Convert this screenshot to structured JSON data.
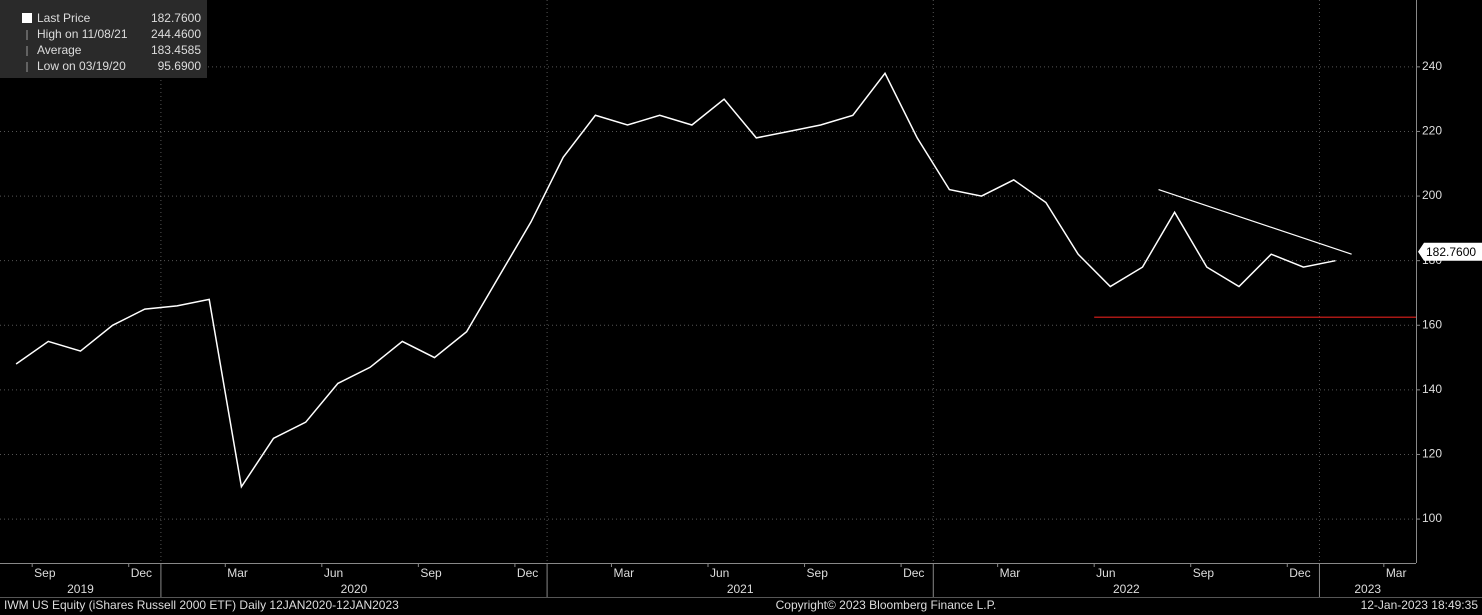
{
  "chart_data": {
    "type": "line",
    "series": [
      {
        "name": "Last Price",
        "color": "#ffffff",
        "values": [
          148,
          155,
          152,
          160,
          165,
          166,
          168,
          110,
          125,
          130,
          142,
          147,
          155,
          150,
          158,
          175,
          192,
          212,
          225,
          222,
          225,
          222,
          230,
          218,
          220,
          222,
          225,
          238,
          218,
          202,
          200,
          205,
          198,
          182,
          172,
          178,
          195,
          178,
          172,
          182,
          178,
          180
        ]
      }
    ],
    "x": [
      "2019-08",
      "2019-09",
      "2019-10",
      "2019-11",
      "2019-12",
      "2020-01",
      "2020-02",
      "2020-03",
      "2020-04",
      "2020-05",
      "2020-06",
      "2020-07",
      "2020-08",
      "2020-09",
      "2020-10",
      "2020-11",
      "2020-12",
      "2021-01",
      "2021-02",
      "2021-03",
      "2021-04",
      "2021-05",
      "2021-06",
      "2021-07",
      "2021-08",
      "2021-09",
      "2021-10",
      "2021-11",
      "2021-12",
      "2022-01",
      "2022-02",
      "2022-03",
      "2022-04",
      "2022-05",
      "2022-06",
      "2022-07",
      "2022-08",
      "2022-09",
      "2022-10",
      "2022-11",
      "2022-12",
      "2023-01"
    ],
    "xlim": [
      "2019-08",
      "2023-04"
    ],
    "xticks": [
      {
        "value": "2019-09",
        "label": "Sep"
      },
      {
        "value": "2019-12",
        "label": "Dec"
      },
      {
        "value": "2020-03",
        "label": "Mar"
      },
      {
        "value": "2020-06",
        "label": "Jun"
      },
      {
        "value": "2020-09",
        "label": "Sep"
      },
      {
        "value": "2020-12",
        "label": "Dec"
      },
      {
        "value": "2021-03",
        "label": "Mar"
      },
      {
        "value": "2021-06",
        "label": "Jun"
      },
      {
        "value": "2021-09",
        "label": "Sep"
      },
      {
        "value": "2021-12",
        "label": "Dec"
      },
      {
        "value": "2022-03",
        "label": "Mar"
      },
      {
        "value": "2022-06",
        "label": "Jun"
      },
      {
        "value": "2022-09",
        "label": "Sep"
      },
      {
        "value": "2022-12",
        "label": "Dec"
      },
      {
        "value": "2023-03",
        "label": "Mar"
      }
    ],
    "years": [
      "2019",
      "2020",
      "2021",
      "2022",
      "2023"
    ],
    "ylim": [
      86.4,
      260.7
    ],
    "yticks": [
      100,
      120,
      140,
      160,
      180,
      200,
      220,
      240
    ],
    "grid": true,
    "last_value": {
      "value": 182.76,
      "label": "182.7600"
    },
    "legend_stats": [
      {
        "name": "High on 11/08/21",
        "value": {
          "value": 244.46,
          "label": "244.4600"
        }
      },
      {
        "name": "Average",
        "value": {
          "value": 183.4585,
          "label": "183.4585"
        }
      },
      {
        "name": "Low on 03/19/20",
        "value": {
          "value": 95.69,
          "label": "95.6900"
        }
      }
    ],
    "annotations": [
      {
        "color": "#ffffff",
        "points": [
          {
            "x": "2022-08",
            "y": 202
          },
          {
            "x": "2023-02",
            "y": 182
          }
        ]
      },
      {
        "color": "#e0201c",
        "points": [
          {
            "x": "2022-06",
            "y": 162.5
          },
          {
            "x": "2023-04",
            "y": 162.5
          }
        ]
      }
    ],
    "footer": {
      "left": "IWM US Equity (iShares Russell 2000 ETF)  Daily 12JAN2020-12JAN2023",
      "center": "Copyright© 2023 Bloomberg Finance L.P.",
      "right": "12-Jan-2023 18:49:35"
    }
  }
}
